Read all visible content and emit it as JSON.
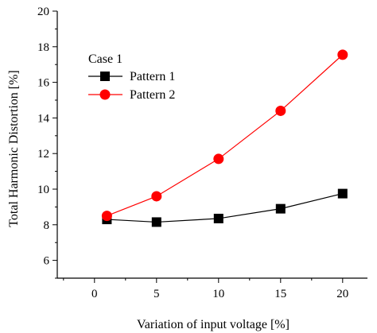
{
  "chart_data": {
    "type": "line",
    "title": "",
    "xlabel": "Variation of input voltage [%]",
    "ylabel": "Total Harmonic Distortion [%]",
    "xlim": [
      -3,
      22
    ],
    "ylim": [
      5,
      20
    ],
    "x_ticks": [
      0,
      5,
      10,
      15,
      20
    ],
    "y_ticks": [
      6,
      8,
      10,
      12,
      14,
      16,
      18,
      20
    ],
    "x_tick_labels": [
      "0",
      "5",
      "10",
      "15",
      "20"
    ],
    "y_tick_labels": [
      "6",
      "8",
      "10",
      "12",
      "14",
      "16",
      "18",
      "20"
    ],
    "grid": false,
    "legend": {
      "title": "Case 1",
      "placement": "upper-left"
    },
    "series": [
      {
        "name": "Pattern 1",
        "color": "#000000",
        "marker": "square",
        "x": [
          1,
          5,
          10,
          15,
          20
        ],
        "y": [
          8.3,
          8.15,
          8.35,
          8.9,
          9.75
        ]
      },
      {
        "name": "Pattern 2",
        "color": "#ff0000",
        "marker": "circle",
        "x": [
          1,
          5,
          10,
          15,
          20
        ],
        "y": [
          8.5,
          9.6,
          11.7,
          14.4,
          17.55
        ]
      }
    ]
  }
}
